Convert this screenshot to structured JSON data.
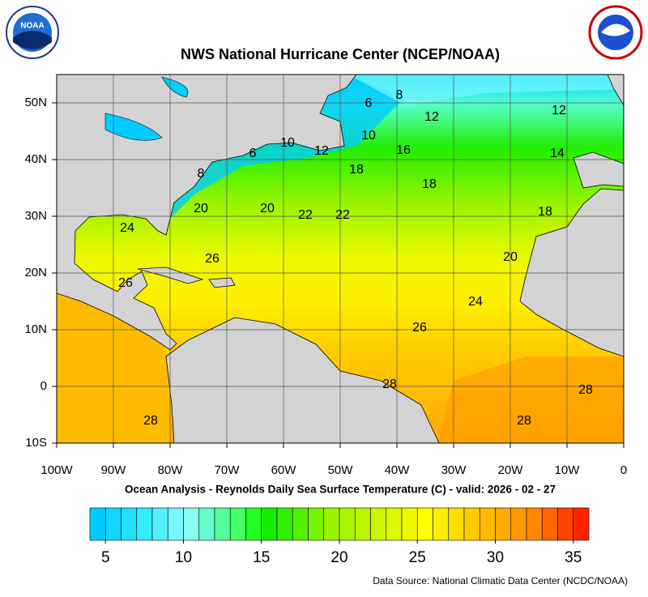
{
  "header": {
    "title": "NWS National Hurricane Center (NCEP/NOAA)",
    "left_logo": "NOAA"
  },
  "map": {
    "xlim": [
      -100,
      0
    ],
    "ylim": [
      -10,
      55
    ],
    "lon_ticks": [
      {
        "value": -100,
        "label": "100W"
      },
      {
        "value": -90,
        "label": "90W"
      },
      {
        "value": -80,
        "label": "80W"
      },
      {
        "value": -70,
        "label": "70W"
      },
      {
        "value": -60,
        "label": "60W"
      },
      {
        "value": -50,
        "label": "50W"
      },
      {
        "value": -40,
        "label": "40W"
      },
      {
        "value": -30,
        "label": "30W"
      },
      {
        "value": -20,
        "label": "20W"
      },
      {
        "value": -10,
        "label": "10W"
      },
      {
        "value": 0,
        "label": "0"
      }
    ],
    "lat_ticks": [
      {
        "value": 50,
        "label": "50N"
      },
      {
        "value": 40,
        "label": "40N"
      },
      {
        "value": 30,
        "label": "30N"
      },
      {
        "value": 20,
        "label": "20N"
      },
      {
        "value": 10,
        "label": "10N"
      },
      {
        "value": 0,
        "label": "0"
      },
      {
        "value": -10,
        "label": "10S"
      }
    ],
    "contour_labels": [
      8,
      6,
      12,
      12,
      10,
      12,
      10,
      16,
      14,
      6,
      8,
      18,
      18,
      20,
      20,
      22,
      22,
      18,
      24,
      26,
      20,
      26,
      24,
      26,
      28,
      28,
      28,
      28
    ]
  },
  "subtitle": "Ocean Analysis - Reynolds Daily Sea Surface Temperature (C) - valid: 2026 - 02 - 27",
  "colorbar": {
    "range": [
      4,
      36
    ],
    "ticks": [
      5,
      10,
      15,
      20,
      25,
      30,
      35
    ],
    "colors": [
      "#00ccff",
      "#11d6ff",
      "#22e0ff",
      "#33eaff",
      "#55f0ff",
      "#77f7ff",
      "#88ffee",
      "#66ffcc",
      "#55ff99",
      "#44ff66",
      "#22ff22",
      "#11ee00",
      "#33ee00",
      "#55f000",
      "#77f200",
      "#99f400",
      "#aaf500",
      "#bbf600",
      "#ccf700",
      "#ddf800",
      "#eef900",
      "#ffff00",
      "#ffee00",
      "#ffdd00",
      "#ffcc00",
      "#ffbb00",
      "#ffaa00",
      "#ff9900",
      "#ff8800",
      "#ff6600",
      "#ff4400",
      "#ff2200"
    ]
  },
  "footer": {
    "source": "Data Source: National Climatic Data Center (NCDC/NOAA)"
  }
}
